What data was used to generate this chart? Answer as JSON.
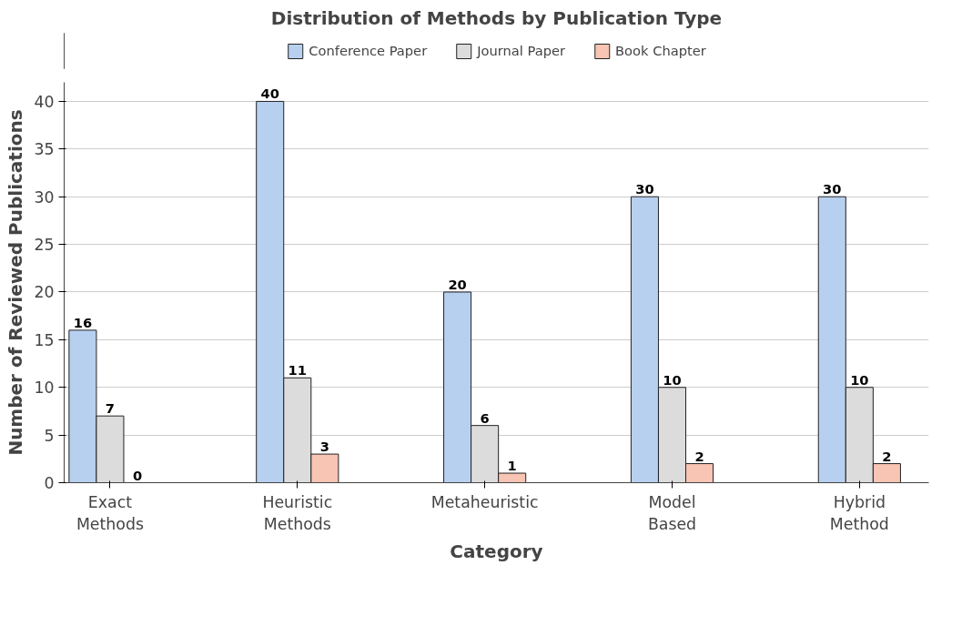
{
  "chart_data": {
    "type": "bar",
    "title": "Distribution of Methods by Publication Type",
    "xlabel": "Category",
    "ylabel": "Number of Reviewed Publications",
    "categories": [
      "Exact Methods",
      "Heuristic Methods",
      "Metaheuristic",
      "Model Based",
      "Hybrid Method"
    ],
    "series": [
      {
        "name": "Conference Paper",
        "color": "#b8d0f0",
        "values": [
          16,
          40,
          20,
          30,
          30
        ]
      },
      {
        "name": "Journal Paper",
        "color": "#dcdcdc",
        "values": [
          7,
          11,
          6,
          10,
          10
        ]
      },
      {
        "name": "Book Chapter",
        "color": "#f8c4b4",
        "values": [
          0,
          3,
          1,
          2,
          2
        ]
      }
    ],
    "ylim": [
      0,
      42
    ],
    "yticks": [
      0,
      5,
      10,
      15,
      20,
      25,
      30,
      35,
      40
    ],
    "grid": "y",
    "legend": "top",
    "data_labels": true
  }
}
